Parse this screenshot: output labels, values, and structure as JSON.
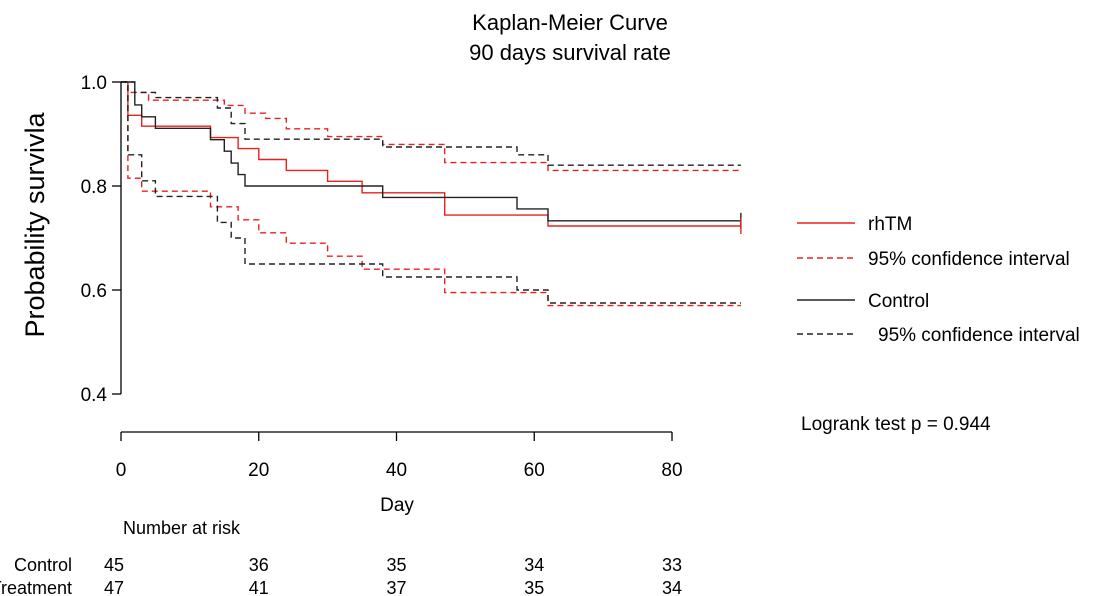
{
  "chart_data": {
    "type": "line",
    "title": "Kaplan-Meier Curve",
    "subtitle": "90 days survival rate",
    "xlabel": "Day",
    "ylabel": "Probability survivla",
    "xlim": [
      0,
      80
    ],
    "ylim": [
      0.4,
      1.0
    ],
    "x_ticks": [
      "0",
      "20",
      "40",
      "60",
      "80"
    ],
    "y_ticks": [
      "0.4",
      "0.6",
      "0.8",
      "1.0"
    ],
    "grid": false,
    "legend_position": "right",
    "annotation": "Logrank test p = 0.944",
    "series": [
      {
        "name": "rhTM",
        "color": "#e8211f",
        "dash": "solid",
        "points": [
          [
            0,
            1.0
          ],
          [
            1,
            0.936
          ],
          [
            3,
            0.915
          ],
          [
            5,
            0.915
          ],
          [
            13,
            0.893
          ],
          [
            15,
            0.893
          ],
          [
            17,
            0.872
          ],
          [
            20,
            0.851
          ],
          [
            24,
            0.83
          ],
          [
            30,
            0.809
          ],
          [
            35,
            0.787
          ],
          [
            38,
            0.787
          ],
          [
            47,
            0.744
          ],
          [
            62,
            0.723
          ],
          [
            90,
            0.723
          ]
        ]
      },
      {
        "name": "95% confidence interval",
        "color": "#e8211f",
        "dash": "dashed",
        "points": [
          [
            0,
            1.0
          ],
          [
            1,
            0.98
          ],
          [
            4,
            0.965
          ],
          [
            13,
            0.965
          ],
          [
            15,
            0.955
          ],
          [
            18,
            0.94
          ],
          [
            21,
            0.93
          ],
          [
            24,
            0.91
          ],
          [
            30,
            0.895
          ],
          [
            38,
            0.88
          ],
          [
            47,
            0.845
          ],
          [
            62,
            0.83
          ],
          [
            90,
            0.83
          ]
        ]
      },
      {
        "name": "95% confidence interval",
        "color": "#e8211f",
        "dash": "dashed",
        "points": [
          [
            0,
            1.0
          ],
          [
            1,
            0.815
          ],
          [
            3,
            0.79
          ],
          [
            5,
            0.79
          ],
          [
            13,
            0.76
          ],
          [
            17,
            0.735
          ],
          [
            20,
            0.71
          ],
          [
            24,
            0.69
          ],
          [
            30,
            0.665
          ],
          [
            35,
            0.64
          ],
          [
            38,
            0.64
          ],
          [
            47,
            0.595
          ],
          [
            62,
            0.57
          ],
          [
            90,
            0.57
          ]
        ]
      },
      {
        "name": "Control",
        "color": "#222222",
        "dash": "solid",
        "points": [
          [
            0,
            1.0
          ],
          [
            2,
            0.956
          ],
          [
            3,
            0.933
          ],
          [
            5,
            0.911
          ],
          [
            12,
            0.911
          ],
          [
            13,
            0.889
          ],
          [
            15,
            0.867
          ],
          [
            16,
            0.844
          ],
          [
            17,
            0.822
          ],
          [
            18,
            0.8
          ],
          [
            37,
            0.8
          ],
          [
            38,
            0.778
          ],
          [
            57,
            0.778
          ],
          [
            57.5,
            0.756
          ],
          [
            62,
            0.733
          ],
          [
            90,
            0.733
          ]
        ]
      },
      {
        "name": "95% confidence interval",
        "color": "#222222",
        "dash": "dashed",
        "points": [
          [
            0,
            1.0
          ],
          [
            2,
            0.98
          ],
          [
            5,
            0.97
          ],
          [
            12,
            0.97
          ],
          [
            14,
            0.95
          ],
          [
            16,
            0.92
          ],
          [
            18,
            0.89
          ],
          [
            37,
            0.89
          ],
          [
            38,
            0.875
          ],
          [
            57,
            0.875
          ],
          [
            57.5,
            0.86
          ],
          [
            62,
            0.84
          ],
          [
            90,
            0.84
          ]
        ]
      },
      {
        "name": "95% confidence interval",
        "color": "#222222",
        "dash": "dashed",
        "points": [
          [
            0,
            1.0
          ],
          [
            1,
            0.86
          ],
          [
            3,
            0.81
          ],
          [
            5,
            0.78
          ],
          [
            12,
            0.78
          ],
          [
            14,
            0.73
          ],
          [
            16,
            0.7
          ],
          [
            18,
            0.65
          ],
          [
            37,
            0.65
          ],
          [
            38,
            0.625
          ],
          [
            57,
            0.625
          ],
          [
            57.5,
            0.6
          ],
          [
            62,
            0.575
          ],
          [
            90,
            0.575
          ]
        ]
      }
    ],
    "censor_marks": [
      {
        "series": "Control",
        "x": 90,
        "y": 0.733
      },
      {
        "series": "rhTM",
        "x": 90,
        "y": 0.723
      }
    ],
    "risk_table": {
      "title": "Number at risk",
      "x": [
        0,
        20,
        40,
        60,
        80
      ],
      "rows": [
        {
          "label": "Control",
          "values": [
            "45",
            "36",
            "35",
            "34",
            "33"
          ]
        },
        {
          "label": "Treatment",
          "values": [
            "47",
            "41",
            "37",
            "35",
            "34"
          ]
        }
      ]
    }
  }
}
